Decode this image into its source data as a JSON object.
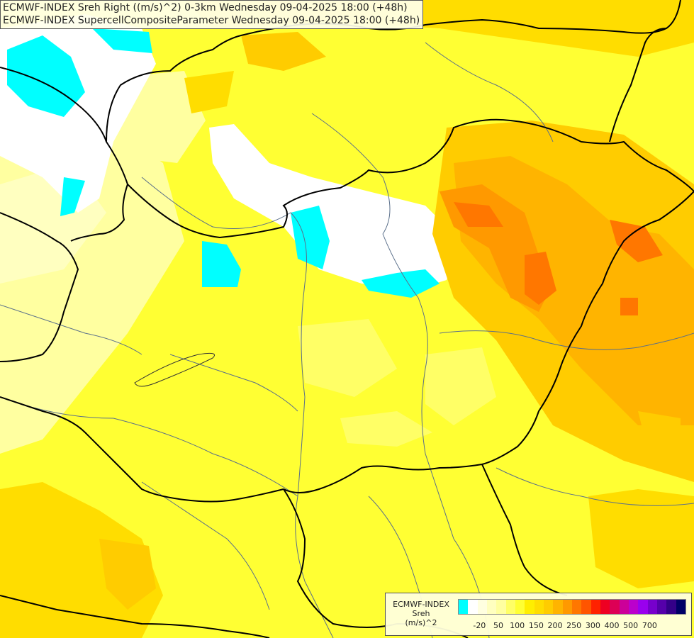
{
  "title": {
    "line1": "ECMWF-INDEX Sreh Right ((m/s)^2) 0-3km Wednesday 09-04-2025 18:00 (+48h)",
    "line2": "ECMWF-INDEX SupercellCompositeParameter Wednesday 09-04-2025 18:00 (+48h)"
  },
  "legend": {
    "line1": "ECMWF-INDEX",
    "line2": "Sreh",
    "line3": "(m/s)^2",
    "colors": [
      "#00ffff",
      "#ffffff",
      "#ffffe0",
      "#ffffc0",
      "#ffffa0",
      "#ffff66",
      "#ffff33",
      "#ffee00",
      "#ffdd00",
      "#ffcc00",
      "#ffb400",
      "#ff9900",
      "#ff7700",
      "#ff5500",
      "#ff2200",
      "#ee0022",
      "#dd0055",
      "#cc0099",
      "#bb00cc",
      "#9900ee",
      "#7700cc",
      "#5500aa",
      "#330088",
      "#000066"
    ],
    "ticks": [
      {
        "label": "-20",
        "pos": 1
      },
      {
        "label": "50",
        "pos": 3
      },
      {
        "label": "100",
        "pos": 5
      },
      {
        "label": "150",
        "pos": 7
      },
      {
        "label": "200",
        "pos": 9
      },
      {
        "label": "250",
        "pos": 11
      },
      {
        "label": "300",
        "pos": 13
      },
      {
        "label": "400",
        "pos": 15
      },
      {
        "label": "500",
        "pos": 17
      },
      {
        "label": "700",
        "pos": 19
      }
    ]
  }
}
